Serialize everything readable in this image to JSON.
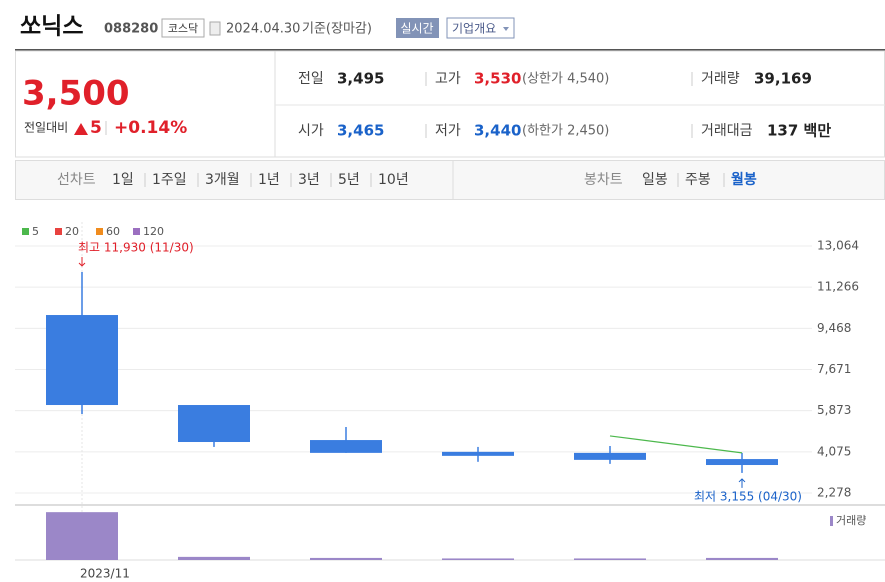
{
  "header": {
    "title": "쏘닉스",
    "code": "088280",
    "market": "코스닥",
    "date": "2024.04.30",
    "basis": "기준(장마감)",
    "buttons": [
      "실시간",
      "기업개요"
    ]
  },
  "quote": {
    "price": "3,500",
    "change_label": "전일대비",
    "change": "5",
    "change_pct": "+0.14%"
  },
  "details": [
    [
      {
        "label": "전일",
        "value": "3,495"
      },
      {
        "label": "고가",
        "value": "3,530",
        "note": "(상한가 4,540)"
      },
      {
        "label": "거래량",
        "value": "39,169"
      }
    ],
    [
      {
        "label": "시가",
        "value": "3,465"
      },
      {
        "label": "저가",
        "value": "3,440",
        "note": "(하한가 2,450)"
      },
      {
        "label": "거래대금",
        "value": "137 백만"
      }
    ]
  ],
  "tabs": {
    "line_label": "선차트",
    "line_periods": [
      "1일",
      "1주일",
      "3개월",
      "1년",
      "3년",
      "5년",
      "10년"
    ],
    "candle_label": "봉차트",
    "candle_periods": [
      "일봉",
      "주봉",
      "월봉"
    ]
  },
  "chart_data": {
    "type": "candlestick",
    "categories": [
      "2023/11",
      null,
      null,
      null,
      null,
      null
    ],
    "open": [
      10050,
      6120,
      4590,
      4075,
      4030,
      3760
    ],
    "high": [
      11930,
      6120,
      5160,
      4290,
      4330,
      4030
    ],
    "low": [
      5730,
      4290,
      4030,
      3640,
      3550,
      3155
    ],
    "close": [
      6120,
      4505,
      4030,
      3900,
      3725,
      3500
    ],
    "up_color": "#e0202a",
    "down_color": "#3a7de0",
    "ylim": [
      2278,
      13064
    ],
    "yticks": [
      {
        "value": 2278,
        "label": "2,278"
      },
      {
        "value": 4075,
        "label": "4,075"
      },
      {
        "value": 5873,
        "label": "5,873"
      },
      {
        "value": 7671,
        "label": "7,671"
      },
      {
        "value": 9468,
        "label": "9,468"
      },
      {
        "value": 11266,
        "label": "11,266"
      },
      {
        "value": 13064,
        "label": "13,064"
      }
    ],
    "series": [
      {
        "name": "5",
        "color": "#4cb84c",
        "values": [
          null,
          null,
          null,
          null,
          4770,
          4030
        ]
      },
      {
        "name": "20",
        "color": "#e8423f",
        "values": [
          null,
          null,
          null,
          null,
          null,
          null
        ]
      },
      {
        "name": "60",
        "color": "#f08c1e",
        "values": [
          null,
          null,
          null,
          null,
          null,
          null
        ]
      },
      {
        "name": "120",
        "color": "#9b6fc0",
        "values": [
          null,
          null,
          null,
          null,
          null,
          null
        ]
      }
    ],
    "high_label": "최고 11,930 (11/30)",
    "low_label": "최저 3,155 (04/30)",
    "volume": {
      "name": "거래량",
      "color": "#9b87c8",
      "ylim": [
        0,
        5000000
      ],
      "values": [
        4600000,
        300000,
        200000,
        150000,
        150000,
        200000
      ]
    }
  }
}
